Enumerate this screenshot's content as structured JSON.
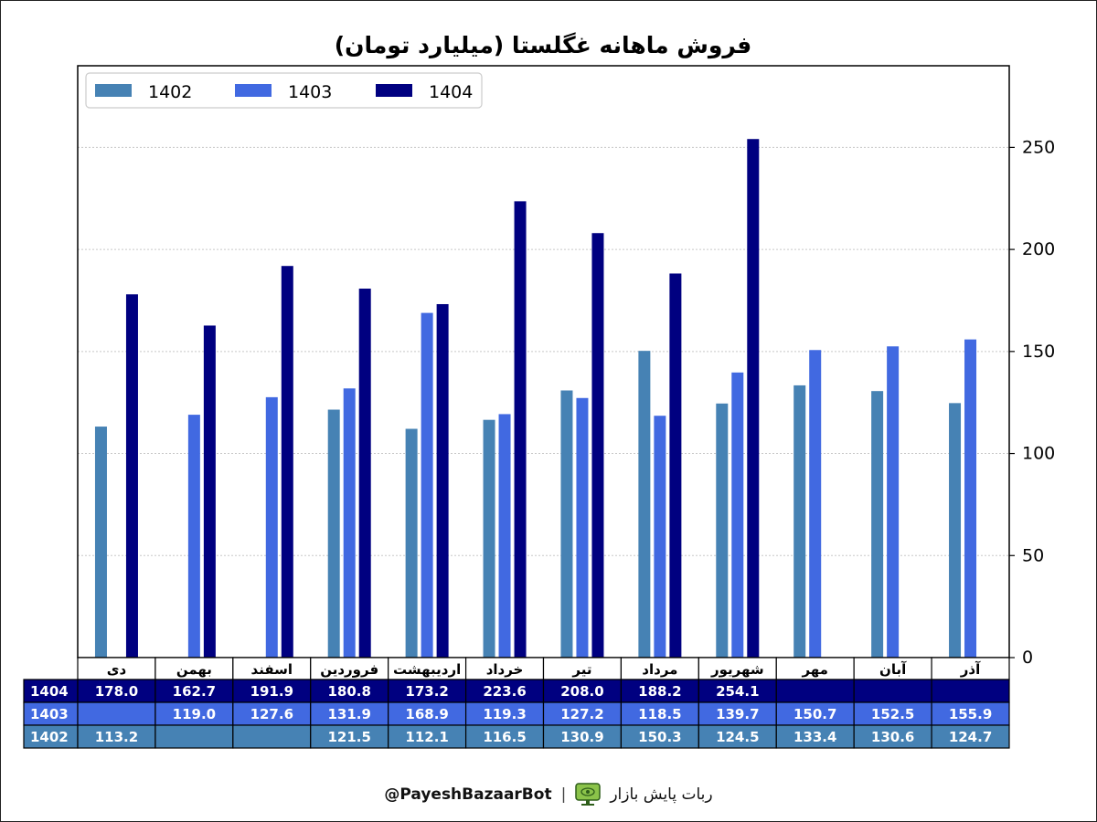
{
  "chart_data": {
    "type": "bar",
    "title": "فروش ماهانه غگلستا (میلیارد تومان)",
    "categories": [
      "دی",
      "بهمن",
      "اسفند",
      "فروردین",
      "اردیبهشت",
      "خرداد",
      "تیر",
      "مرداد",
      "شهریور",
      "مهر",
      "آبان",
      "آذر"
    ],
    "series": [
      {
        "name": "1402",
        "color": "#4682B4",
        "values": [
          113.2,
          null,
          null,
          121.5,
          112.1,
          116.5,
          130.9,
          150.3,
          124.5,
          133.4,
          130.6,
          124.7
        ]
      },
      {
        "name": "1403",
        "color": "#4169E1",
        "values": [
          null,
          119.0,
          127.6,
          131.9,
          168.9,
          119.3,
          127.2,
          118.5,
          139.7,
          150.7,
          152.5,
          155.9
        ]
      },
      {
        "name": "1404",
        "color": "#000080",
        "values": [
          178.0,
          162.7,
          191.9,
          180.8,
          173.2,
          223.6,
          208.0,
          188.2,
          254.1,
          null,
          null,
          null
        ]
      }
    ],
    "y_ticks": [
      0,
      50,
      100,
      150,
      200,
      250
    ],
    "ylim": [
      0,
      290
    ],
    "y_axis_side": "right",
    "grid": "horizontal dotted",
    "legend": "top-left",
    "table": {
      "row_order": [
        "1404",
        "1403",
        "1402"
      ],
      "rows": {
        "1404": [
          "178.0",
          "162.7",
          "191.9",
          "180.8",
          "173.2",
          "223.6",
          "208.0",
          "188.2",
          "254.1",
          "",
          "",
          ""
        ],
        "1403": [
          "",
          "119.0",
          "127.6",
          "131.9",
          "168.9",
          "119.3",
          "127.2",
          "118.5",
          "139.7",
          "150.7",
          "152.5",
          "155.9"
        ],
        "1402": [
          "113.2",
          "",
          "",
          "121.5",
          "112.1",
          "116.5",
          "130.9",
          "150.3",
          "124.5",
          "133.4",
          "130.6",
          "124.7"
        ]
      }
    }
  },
  "footer": {
    "handle": "@PayeshBazaarBot",
    "separator": "|",
    "bot_name": "ربات پایش بازار",
    "icon": "monitor-eye-icon"
  }
}
